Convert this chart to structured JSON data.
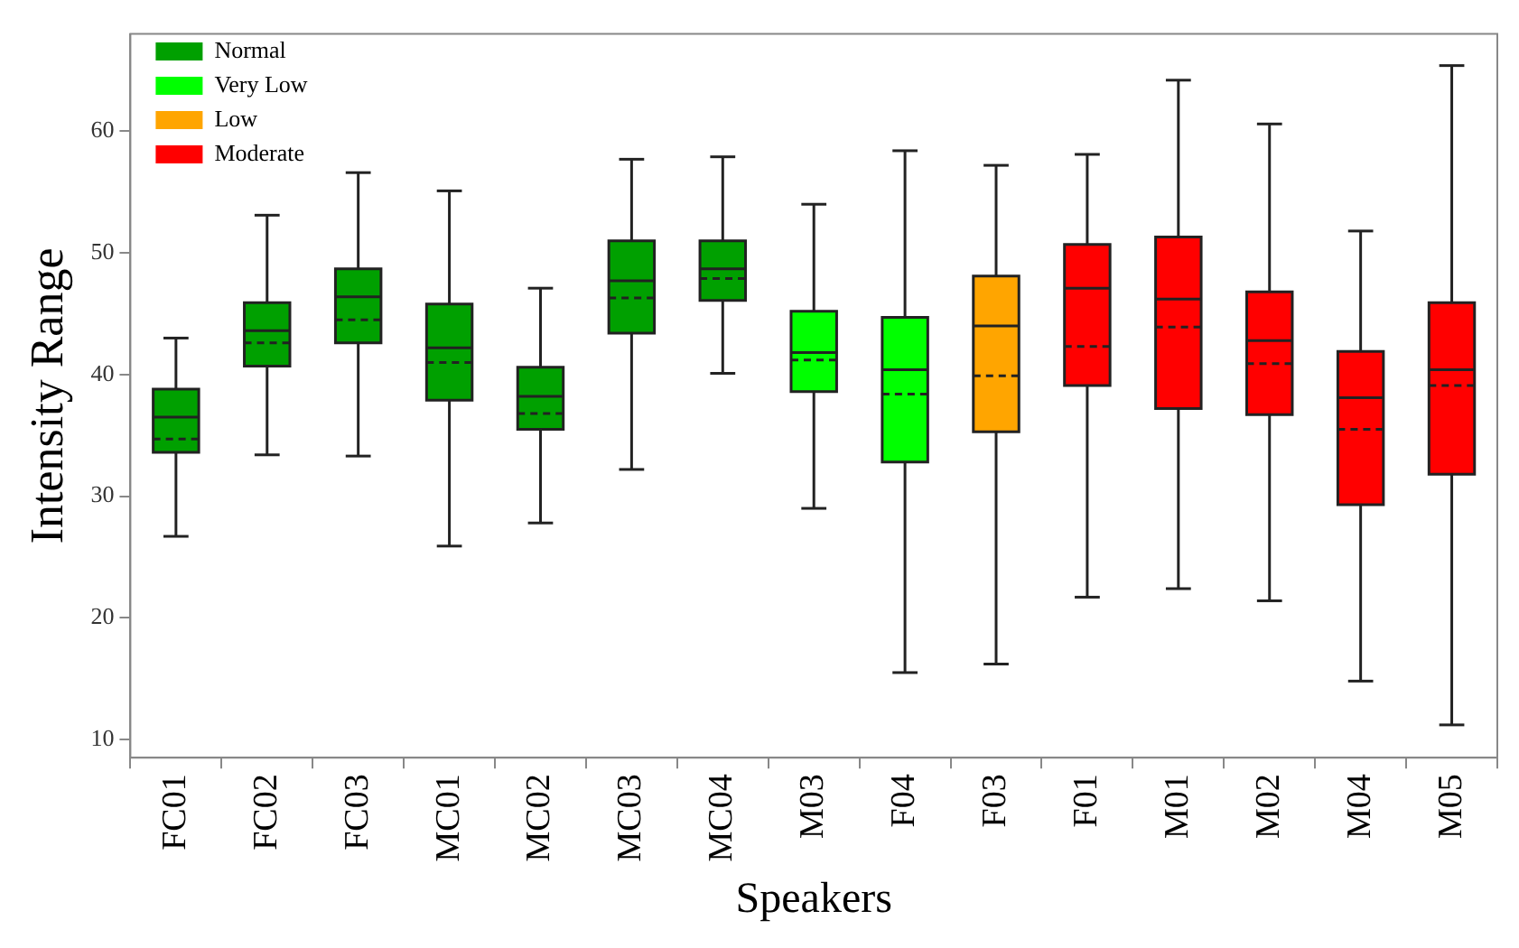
{
  "chart_data": {
    "type": "box",
    "xlabel": "Speakers",
    "ylabel": "Intensity Range",
    "categories": [
      "FC01",
      "FC02",
      "FC03",
      "MC01",
      "MC02",
      "MC03",
      "MC04",
      "M03",
      "F04",
      "F03",
      "F01",
      "M01",
      "M02",
      "M04",
      "M05"
    ],
    "ylim": [
      8.5,
      68
    ],
    "yticks": [
      10,
      20,
      30,
      40,
      50,
      60
    ],
    "grid": false,
    "legend": "top left",
    "series": [
      {
        "name": "Normal",
        "color": "#00a000",
        "boxes": [
          {
            "low": 26.7,
            "q1": 33.6,
            "median": 36.5,
            "q3": 38.8,
            "high": 43.0,
            "mean": 34.7
          },
          {
            "low": 33.4,
            "q1": 40.7,
            "median": 43.6,
            "q3": 45.9,
            "high": 53.1,
            "mean": 42.6
          },
          {
            "low": 33.3,
            "q1": 42.6,
            "median": 46.4,
            "q3": 48.7,
            "high": 56.6,
            "mean": 44.5
          },
          {
            "low": 25.9,
            "q1": 37.9,
            "median": 42.2,
            "q3": 45.8,
            "high": 55.1,
            "mean": 41.0
          },
          {
            "low": 27.8,
            "q1": 35.5,
            "median": 38.2,
            "q3": 40.6,
            "high": 47.1,
            "mean": 36.8
          },
          {
            "low": 32.2,
            "q1": 43.4,
            "median": 47.7,
            "q3": 51.0,
            "high": 57.7,
            "mean": 46.3
          },
          {
            "low": 40.1,
            "q1": 46.1,
            "median": 48.7,
            "q3": 51.0,
            "high": 57.9,
            "mean": 47.9
          },
          null,
          null,
          null,
          null,
          null,
          null,
          null,
          null
        ]
      },
      {
        "name": "Very Low",
        "color": "#00ff00",
        "boxes": [
          null,
          null,
          null,
          null,
          null,
          null,
          null,
          {
            "low": 29.0,
            "q1": 38.6,
            "median": 41.8,
            "q3": 45.2,
            "high": 54.0,
            "mean": 41.2
          },
          {
            "low": 15.5,
            "q1": 32.8,
            "median": 40.4,
            "q3": 44.7,
            "high": 58.4,
            "mean": 38.4
          },
          null,
          null,
          null,
          null,
          null,
          null
        ]
      },
      {
        "name": "Low",
        "color": "#ffa500",
        "boxes": [
          null,
          null,
          null,
          null,
          null,
          null,
          null,
          null,
          null,
          {
            "low": 16.2,
            "q1": 35.3,
            "median": 44.0,
            "q3": 48.1,
            "high": 57.2,
            "mean": 39.9
          },
          null,
          null,
          null,
          null,
          null
        ]
      },
      {
        "name": "Moderate",
        "color": "#ff0000",
        "boxes": [
          null,
          null,
          null,
          null,
          null,
          null,
          null,
          null,
          null,
          null,
          {
            "low": 21.7,
            "q1": 39.1,
            "median": 47.1,
            "q3": 50.7,
            "high": 58.1,
            "mean": 42.3
          },
          {
            "low": 22.4,
            "q1": 37.2,
            "median": 46.2,
            "q3": 51.3,
            "high": 64.2,
            "mean": 43.9
          },
          {
            "low": 21.4,
            "q1": 36.7,
            "median": 42.8,
            "q3": 46.8,
            "high": 60.6,
            "mean": 40.9
          },
          {
            "low": 14.8,
            "q1": 29.3,
            "median": 38.1,
            "q3": 41.9,
            "high": 51.8,
            "mean": 35.5
          },
          {
            "low": 11.2,
            "q1": 31.8,
            "median": 40.4,
            "q3": 45.9,
            "high": 65.4,
            "mean": 39.1
          }
        ]
      }
    ]
  }
}
